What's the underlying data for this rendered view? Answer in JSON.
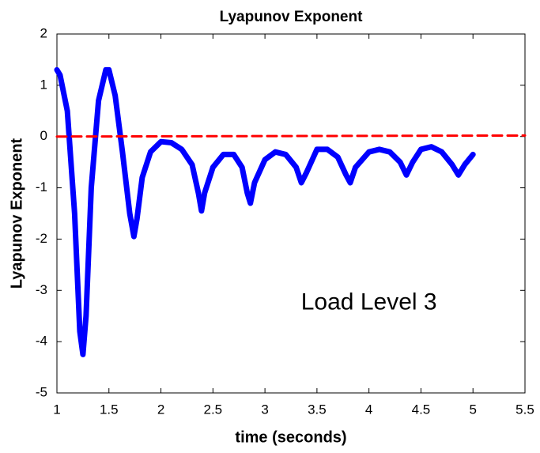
{
  "chart_data": {
    "type": "line",
    "title": "Lyapunov Exponent",
    "xlabel": "time (seconds)",
    "ylabel": "Lyapunov Exponent",
    "annotation": {
      "text": "Load Level 3",
      "x": 4.0,
      "y": -3.25
    },
    "xlim": [
      1,
      5.5
    ],
    "xticks": [
      1,
      1.5,
      2,
      2.5,
      3,
      3.5,
      4,
      4.5,
      5,
      5.5
    ],
    "ylim": [
      -5,
      2
    ],
    "yticks": [
      -5,
      -4,
      -3,
      -2,
      -1,
      0,
      1,
      2
    ],
    "series": [
      {
        "color": "#0000ff",
        "line_style": "solid",
        "x": [
          1.0,
          1.03,
          1.1,
          1.17,
          1.22,
          1.25,
          1.28,
          1.33,
          1.4,
          1.47,
          1.5,
          1.56,
          1.63,
          1.7,
          1.74,
          1.77,
          1.82,
          1.9,
          2.0,
          2.1,
          2.2,
          2.3,
          2.36,
          2.39,
          2.42,
          2.5,
          2.6,
          2.7,
          2.78,
          2.83,
          2.86,
          2.9,
          3.0,
          3.1,
          3.2,
          3.3,
          3.35,
          3.4,
          3.5,
          3.6,
          3.7,
          3.78,
          3.82,
          3.87,
          4.0,
          4.1,
          4.2,
          4.3,
          4.36,
          4.42,
          4.5,
          4.6,
          4.7,
          4.8,
          4.86,
          4.92,
          5.0
        ],
        "values": [
          1.3,
          1.2,
          0.5,
          -1.5,
          -3.8,
          -4.25,
          -3.5,
          -1.0,
          0.7,
          1.3,
          1.3,
          0.8,
          -0.3,
          -1.5,
          -1.95,
          -1.6,
          -0.8,
          -0.3,
          -0.1,
          -0.12,
          -0.25,
          -0.55,
          -1.1,
          -1.45,
          -1.1,
          -0.6,
          -0.35,
          -0.35,
          -0.6,
          -1.1,
          -1.3,
          -0.9,
          -0.45,
          -0.3,
          -0.35,
          -0.6,
          -0.9,
          -0.7,
          -0.25,
          -0.25,
          -0.4,
          -0.75,
          -0.9,
          -0.6,
          -0.3,
          -0.25,
          -0.3,
          -0.5,
          -0.75,
          -0.5,
          -0.25,
          -0.2,
          -0.3,
          -0.55,
          -0.75,
          -0.55,
          -0.35
        ]
      },
      {
        "color": "#ff0000",
        "line_style": "dashed",
        "x": [
          1.0,
          5.5
        ],
        "values": [
          0,
          0.02
        ]
      }
    ]
  }
}
